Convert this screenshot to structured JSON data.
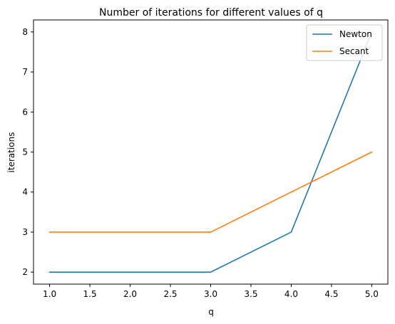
{
  "chart_data": {
    "type": "line",
    "title": "Number of iterations for different values of q",
    "xlabel": "q",
    "ylabel": "iterations",
    "x": [
      1.0,
      3.0,
      4.0,
      5.0
    ],
    "xlim": [
      0.8,
      5.2
    ],
    "ylim": [
      1.7,
      8.3
    ],
    "xticks": [
      "1.0",
      "1.5",
      "2.0",
      "2.5",
      "3.0",
      "3.5",
      "4.0",
      "4.5",
      "5.0"
    ],
    "yticks": [
      "2",
      "3",
      "4",
      "5",
      "6",
      "7",
      "8"
    ],
    "grid": false,
    "legend_position": "top-right",
    "series": [
      {
        "name": "Newton",
        "color": "#1f77b4",
        "values": [
          2,
          2,
          3,
          8
        ]
      },
      {
        "name": "Secant",
        "color": "#ff7f0e",
        "values": [
          3,
          3,
          4,
          5
        ]
      }
    ]
  }
}
